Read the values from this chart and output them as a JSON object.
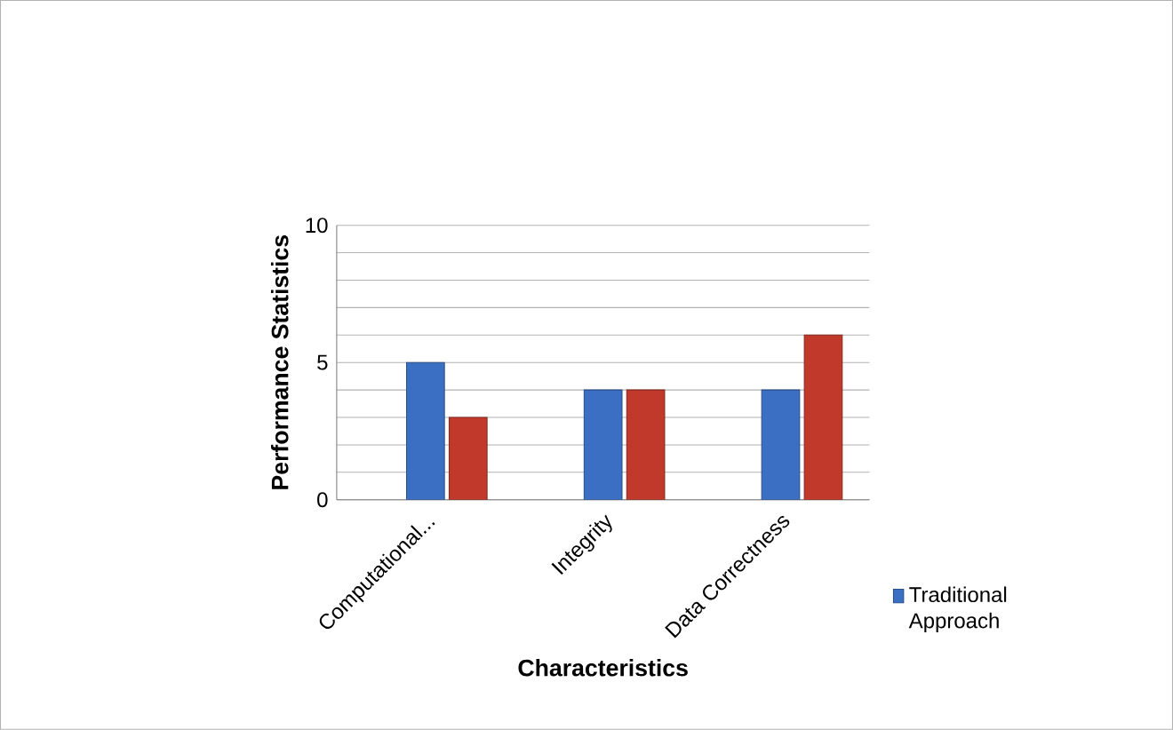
{
  "chart_data": {
    "type": "bar",
    "xlabel": "Characteristics",
    "ylabel": "Performance Statistics",
    "categories": [
      "Computational...",
      "Integrity",
      "Data Correctness"
    ],
    "series": [
      {
        "name": "Traditional Approach",
        "color": "#3a6fc4",
        "values": [
          5,
          4,
          4
        ]
      },
      {
        "color": "#c0392b",
        "values": [
          3,
          4,
          6
        ]
      }
    ],
    "ylim": [
      0,
      10
    ],
    "yticks": [
      0,
      {
        "value": 1,
        "label": null
      },
      {
        "value": 2,
        "label": null
      },
      {
        "value": 3,
        "label": null
      },
      {
        "value": 4,
        "label": null
      },
      5,
      {
        "value": 6,
        "label": null
      },
      {
        "value": 7,
        "label": null
      },
      {
        "value": 8,
        "label": null
      },
      {
        "value": 9,
        "label": null
      },
      10
    ],
    "grid": true,
    "legend": "right"
  }
}
